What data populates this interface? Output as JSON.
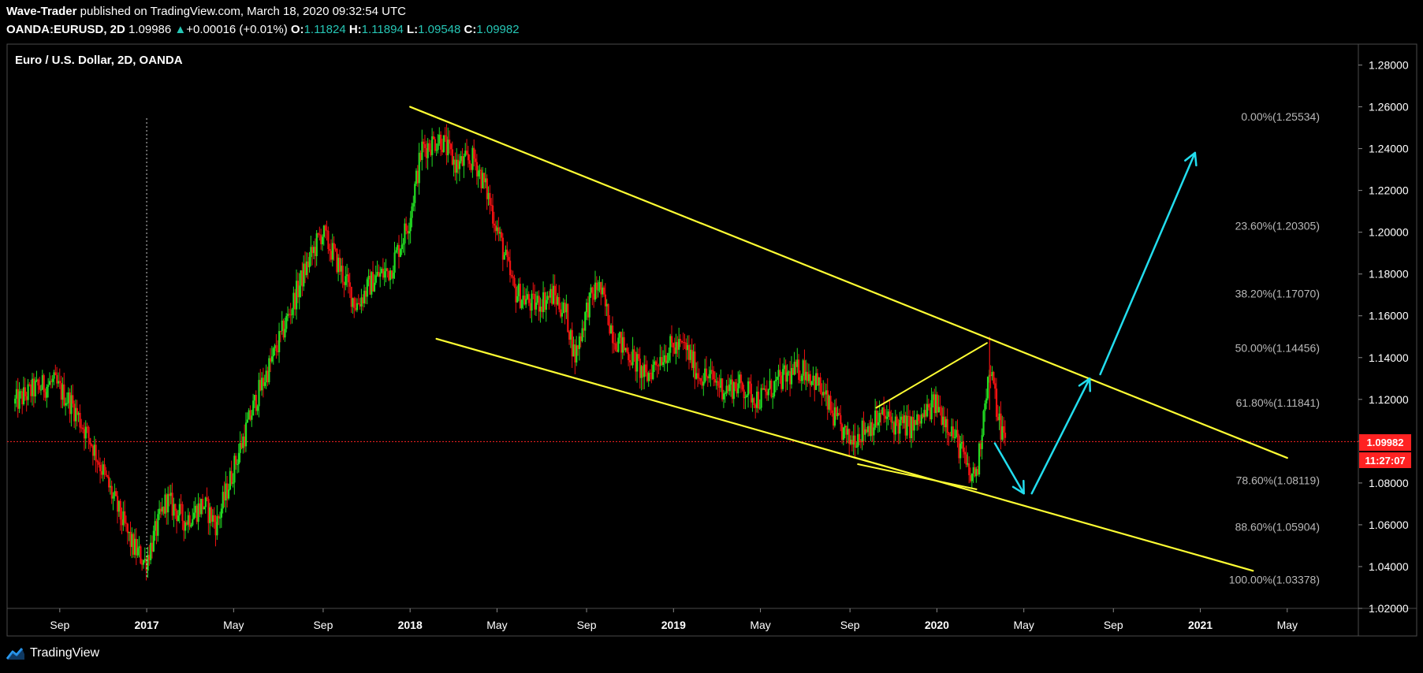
{
  "header": {
    "author": "Wave-Trader",
    "published_text": "published on TradingView.com, March 18, 2020 09:32:54 UTC",
    "symbol": "OANDA:EURUSD, 2D",
    "last_price": "1.09986",
    "change": "+0.00016 (+0.01%)",
    "open_label": "O:",
    "open": "1.11824",
    "high_label": "H:",
    "high": "1.11894",
    "low_label": "L:",
    "low": "1.09548",
    "close_label": "C:",
    "close": "1.09982"
  },
  "chart_title": "Euro / U.S. Dollar, 2D, OANDA",
  "footer": {
    "brand": "TradingView"
  },
  "price_tag": {
    "price": "1.09982",
    "countdown": "11:27:07"
  },
  "colors": {
    "background": "#000000",
    "bull": "#22dd22",
    "bear": "#ee1111",
    "trendline": "#ffff33",
    "arrow": "#22ddee",
    "price_tag": "#ff2222",
    "fib_text": "#b8b8b8"
  },
  "chart_data": {
    "type": "candlestick",
    "symbol": "EURUSD",
    "timeframe": "2D",
    "y_ticks": [
      "1.28000",
      "1.26000",
      "1.24000",
      "1.22000",
      "1.20000",
      "1.18000",
      "1.16000",
      "1.14000",
      "1.12000",
      "1.10000",
      "1.08000",
      "1.06000",
      "1.04000",
      "1.02000"
    ],
    "x_ticks": [
      {
        "label": "Sep",
        "t": 2016.67,
        "bold": false
      },
      {
        "label": "2017",
        "t": 2017.0,
        "bold": true
      },
      {
        "label": "May",
        "t": 2017.33,
        "bold": false
      },
      {
        "label": "Sep",
        "t": 2017.67,
        "bold": false
      },
      {
        "label": "2018",
        "t": 2018.0,
        "bold": true
      },
      {
        "label": "May",
        "t": 2018.33,
        "bold": false
      },
      {
        "label": "Sep",
        "t": 2018.67,
        "bold": false
      },
      {
        "label": "2019",
        "t": 2019.0,
        "bold": true
      },
      {
        "label": "May",
        "t": 2019.33,
        "bold": false
      },
      {
        "label": "Sep",
        "t": 2019.67,
        "bold": false
      },
      {
        "label": "2020",
        "t": 2020.0,
        "bold": true
      },
      {
        "label": "May",
        "t": 2020.33,
        "bold": false
      },
      {
        "label": "Sep",
        "t": 2020.67,
        "bold": false
      },
      {
        "label": "2021",
        "t": 2021.0,
        "bold": true
      },
      {
        "label": "May",
        "t": 2021.33,
        "bold": false
      }
    ],
    "price_path": [
      [
        2016.5,
        1.118
      ],
      [
        2016.58,
        1.125
      ],
      [
        2016.65,
        1.128
      ],
      [
        2016.72,
        1.118
      ],
      [
        2016.8,
        1.098
      ],
      [
        2016.88,
        1.072
      ],
      [
        2016.95,
        1.05
      ],
      [
        2017.0,
        1.042
      ],
      [
        2017.08,
        1.072
      ],
      [
        2017.15,
        1.062
      ],
      [
        2017.22,
        1.07
      ],
      [
        2017.27,
        1.06
      ],
      [
        2017.33,
        1.085
      ],
      [
        2017.42,
        1.12
      ],
      [
        2017.5,
        1.145
      ],
      [
        2017.6,
        1.18
      ],
      [
        2017.67,
        1.2
      ],
      [
        2017.72,
        1.188
      ],
      [
        2017.8,
        1.165
      ],
      [
        2017.87,
        1.178
      ],
      [
        2017.93,
        1.182
      ],
      [
        2018.0,
        1.205
      ],
      [
        2018.05,
        1.24
      ],
      [
        2018.12,
        1.245
      ],
      [
        2018.18,
        1.232
      ],
      [
        2018.25,
        1.235
      ],
      [
        2018.3,
        1.218
      ],
      [
        2018.35,
        1.195
      ],
      [
        2018.4,
        1.172
      ],
      [
        2018.47,
        1.165
      ],
      [
        2018.55,
        1.17
      ],
      [
        2018.6,
        1.16
      ],
      [
        2018.63,
        1.14
      ],
      [
        2018.68,
        1.165
      ],
      [
        2018.72,
        1.175
      ],
      [
        2018.78,
        1.15
      ],
      [
        2018.85,
        1.14
      ],
      [
        2018.9,
        1.13
      ],
      [
        2018.95,
        1.14
      ],
      [
        2019.0,
        1.145
      ],
      [
        2019.05,
        1.145
      ],
      [
        2019.1,
        1.132
      ],
      [
        2019.15,
        1.13
      ],
      [
        2019.2,
        1.125
      ],
      [
        2019.25,
        1.127
      ],
      [
        2019.33,
        1.12
      ],
      [
        2019.42,
        1.13
      ],
      [
        2019.5,
        1.135
      ],
      [
        2019.55,
        1.128
      ],
      [
        2019.62,
        1.11
      ],
      [
        2019.67,
        1.1
      ],
      [
        2019.72,
        1.105
      ],
      [
        2019.8,
        1.112
      ],
      [
        2019.85,
        1.108
      ],
      [
        2019.92,
        1.107
      ],
      [
        2020.0,
        1.118
      ],
      [
        2020.05,
        1.108
      ],
      [
        2020.1,
        1.095
      ],
      [
        2020.13,
        1.082
      ],
      [
        2020.16,
        1.087
      ],
      [
        2020.19,
        1.124
      ],
      [
        2020.21,
        1.133
      ],
      [
        2020.24,
        1.11
      ],
      [
        2020.26,
        1.101
      ]
    ],
    "x_range": [
      2016.47,
      2021.6
    ],
    "y_range": [
      1.02,
      1.29
    ],
    "last_price": 1.09982,
    "annotations": {
      "vertical_marker": {
        "t": 2017.0
      },
      "upper_trendline": [
        [
          2018.0,
          1.26
        ],
        [
          2021.33,
          1.092
        ]
      ],
      "lower_trendline": [
        [
          2018.1,
          1.149
        ],
        [
          2021.2,
          1.038
        ]
      ],
      "wedge_upper": [
        [
          2019.77,
          1.116
        ],
        [
          2020.19,
          1.147
        ]
      ],
      "wedge_lower": [
        [
          2019.7,
          1.089
        ],
        [
          2020.15,
          1.077
        ]
      ],
      "projection_arrows": [
        [
          [
            2020.22,
            1.099
          ],
          [
            2020.33,
            1.075
          ]
        ],
        [
          [
            2020.36,
            1.075
          ],
          [
            2020.58,
            1.13
          ]
        ],
        [
          [
            2020.62,
            1.132
          ],
          [
            2020.98,
            1.238
          ]
        ]
      ],
      "fib_levels": [
        {
          "label": "0.00%(1.25534)",
          "value": 1.25534
        },
        {
          "label": "23.60%(1.20305)",
          "value": 1.20305
        },
        {
          "label": "38.20%(1.17070)",
          "value": 1.1707
        },
        {
          "label": "50.00%(1.14456)",
          "value": 1.14456
        },
        {
          "label": "61.80%(1.11841)",
          "value": 1.11841
        },
        {
          "label": "78.60%(1.08119)",
          "value": 1.08119
        },
        {
          "label": "88.60%(1.05904)",
          "value": 1.05904
        },
        {
          "label": "100.00%(1.03378)",
          "value": 1.03378
        }
      ]
    }
  }
}
